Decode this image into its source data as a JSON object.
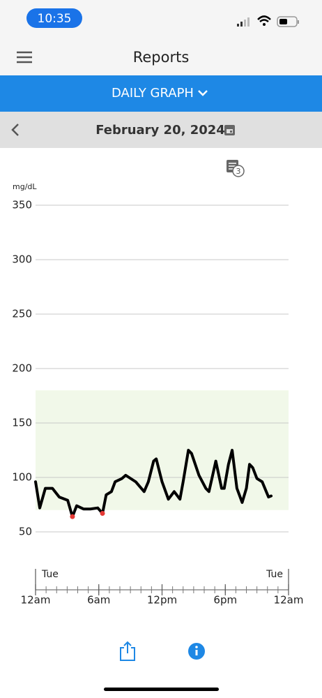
{
  "status_bar": {
    "time": "10:35"
  },
  "header": {
    "title": "Reports"
  },
  "tab": {
    "label": "DAILY GRAPH"
  },
  "date_bar": {
    "date": "February 20, 2024"
  },
  "notes_badge": 3,
  "chart_data": {
    "type": "line",
    "y_label": "mg/dL",
    "ylim": [
      50,
      350
    ],
    "yticks": [
      50,
      100,
      150,
      200,
      250,
      300,
      350
    ],
    "xlim": [
      0,
      24
    ],
    "xticks": [
      {
        "value": 0,
        "label": "12am"
      },
      {
        "value": 6,
        "label": "6am"
      },
      {
        "value": 12,
        "label": "12pm"
      },
      {
        "value": 18,
        "label": "6pm"
      },
      {
        "value": 24,
        "label": "12am"
      }
    ],
    "minor_xticks": [
      0,
      1,
      2,
      3,
      4,
      5,
      6,
      7,
      8,
      9,
      10,
      11,
      12,
      13,
      14,
      15,
      16,
      17,
      18,
      19,
      20,
      21,
      22,
      23,
      24
    ],
    "day_labels": [
      {
        "value": 0,
        "label": "Tue"
      },
      {
        "value": 24,
        "label": "Tue"
      }
    ],
    "grid": true,
    "target_range": [
      70,
      180
    ],
    "target_color": "#f1f8e9",
    "low_color": "#e53935",
    "series": [
      {
        "color": "#000000",
        "x": [
          0,
          0.4,
          0.93,
          1.6,
          2.25,
          3.05,
          3.5,
          3.9,
          4.55,
          5.2,
          5.9,
          6.35,
          6.7,
          7.2,
          7.55,
          8.2,
          8.55,
          9.5,
          10.3,
          10.7,
          11.2,
          11.45,
          12,
          12.6,
          13.15,
          13.7,
          14,
          14.5,
          14.8,
          15.5,
          16.15,
          16.45,
          16.8,
          17.1,
          17.65,
          17.9,
          18.3,
          18.65,
          19.1,
          19.6,
          20,
          20.3,
          20.6,
          21,
          21.5,
          22.1,
          22.35
        ],
        "values": [
          96,
          72,
          90,
          90,
          82,
          79,
          64,
          74,
          71,
          71,
          72,
          67,
          84,
          87,
          96,
          99,
          102,
          96,
          87,
          96,
          115,
          117,
          96,
          80,
          87,
          80,
          96,
          125,
          122,
          102,
          90,
          87,
          102,
          115,
          90,
          90,
          112,
          125,
          90,
          77,
          90,
          112,
          109,
          99,
          96,
          82,
          83
        ]
      }
    ]
  }
}
